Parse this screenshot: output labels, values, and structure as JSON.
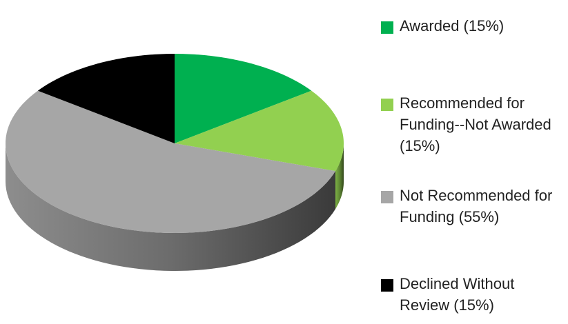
{
  "chart_data": {
    "type": "pie",
    "categories": [
      "Awarded (15%)",
      "Recommended for Funding--Not Awarded (15%)",
      "Not Recommended for Funding (55%)",
      "Declined Without Review (15%)"
    ],
    "values": [
      15,
      15,
      55,
      15
    ],
    "colors": [
      "#00b050",
      "#92d050",
      "#a6a6a6",
      "#000000"
    ],
    "legend": "right"
  }
}
